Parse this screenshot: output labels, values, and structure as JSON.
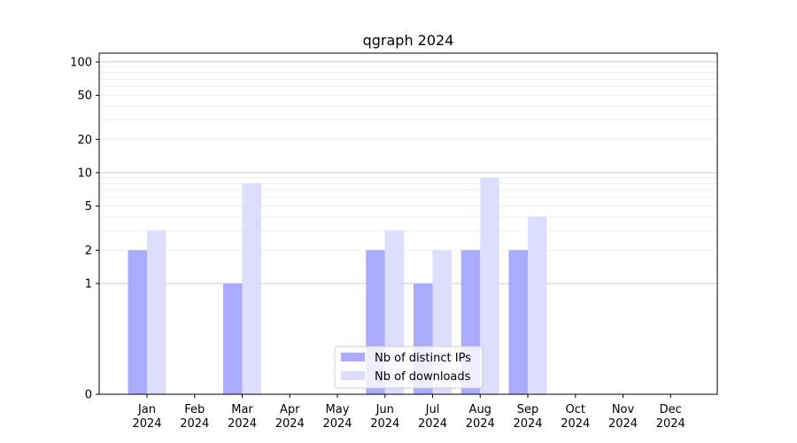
{
  "chart_data": {
    "type": "bar",
    "title": "qgraph 2024",
    "xlabel": "",
    "ylabel": "",
    "categories": [
      [
        "Jan",
        "2024"
      ],
      [
        "Feb",
        "2024"
      ],
      [
        "Mar",
        "2024"
      ],
      [
        "Apr",
        "2024"
      ],
      [
        "May",
        "2024"
      ],
      [
        "Jun",
        "2024"
      ],
      [
        "Jul",
        "2024"
      ],
      [
        "Aug",
        "2024"
      ],
      [
        "Sep",
        "2024"
      ],
      [
        "Oct",
        "2024"
      ],
      [
        "Nov",
        "2024"
      ],
      [
        "Dec",
        "2024"
      ]
    ],
    "series": [
      {
        "name": "Nb of distinct IPs",
        "color": "#aaaaff",
        "values": [
          2,
          0,
          1,
          0,
          0,
          2,
          1,
          2,
          2,
          0,
          0,
          0
        ]
      },
      {
        "name": "Nb of downloads",
        "color": "#ddddff",
        "values": [
          3,
          0,
          8,
          0,
          0,
          3,
          2,
          9,
          4,
          0,
          0,
          0
        ]
      }
    ],
    "y_scale": "symlog",
    "ylim": [
      0,
      120
    ],
    "y_ticks": [
      0,
      1,
      2,
      5,
      10,
      20,
      50,
      100
    ],
    "grid": true,
    "legend_position": "bottom-center"
  }
}
